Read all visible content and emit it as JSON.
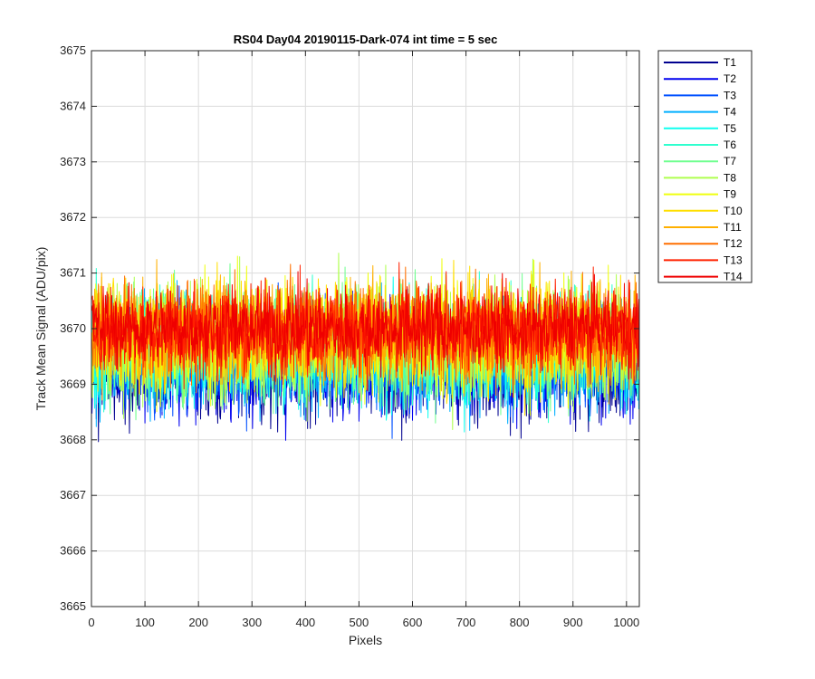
{
  "chart_data": {
    "type": "line",
    "title": "RS04 Day04 20190115-Dark-074 int time = 5 sec",
    "xlabel": "Pixels",
    "ylabel": "Track Mean Signal (ADU/pix)",
    "xlim": [
      0,
      1024
    ],
    "ylim": [
      3665,
      3675
    ],
    "xticks": [
      0,
      100,
      200,
      300,
      400,
      500,
      600,
      700,
      800,
      900,
      1000
    ],
    "yticks": [
      3665,
      3666,
      3667,
      3668,
      3669,
      3670,
      3671,
      3672,
      3673,
      3674,
      3675
    ],
    "grid": true,
    "legend_position": "outside-right-top",
    "series": [
      {
        "name": "T1",
        "color": "#00008f",
        "mean": 3669.3,
        "spread": 0.75
      },
      {
        "name": "T2",
        "color": "#0000ef",
        "mean": 3669.35,
        "spread": 0.75
      },
      {
        "name": "T3",
        "color": "#0050ff",
        "mean": 3669.45,
        "spread": 0.75
      },
      {
        "name": "T4",
        "color": "#00afff",
        "mean": 3669.5,
        "spread": 0.8
      },
      {
        "name": "T5",
        "color": "#0fffef",
        "mean": 3669.6,
        "spread": 0.8
      },
      {
        "name": "T6",
        "color": "#2fffcf",
        "mean": 3669.65,
        "spread": 0.8
      },
      {
        "name": "T7",
        "color": "#6fff8f",
        "mean": 3669.7,
        "spread": 0.85
      },
      {
        "name": "T8",
        "color": "#afff4f",
        "mean": 3669.8,
        "spread": 0.85
      },
      {
        "name": "T9",
        "color": "#efff0f",
        "mean": 3669.85,
        "spread": 0.85
      },
      {
        "name": "T10",
        "color": "#ffdf00",
        "mean": 3669.9,
        "spread": 0.8
      },
      {
        "name": "T11",
        "color": "#ffb000",
        "mean": 3669.9,
        "spread": 0.75
      },
      {
        "name": "T12",
        "color": "#ff6f00",
        "mean": 3669.95,
        "spread": 0.7
      },
      {
        "name": "T13",
        "color": "#ff2000",
        "mean": 3670.0,
        "spread": 0.65
      },
      {
        "name": "T14",
        "color": "#ef0000",
        "mean": 3670.0,
        "spread": 0.6
      }
    ]
  }
}
